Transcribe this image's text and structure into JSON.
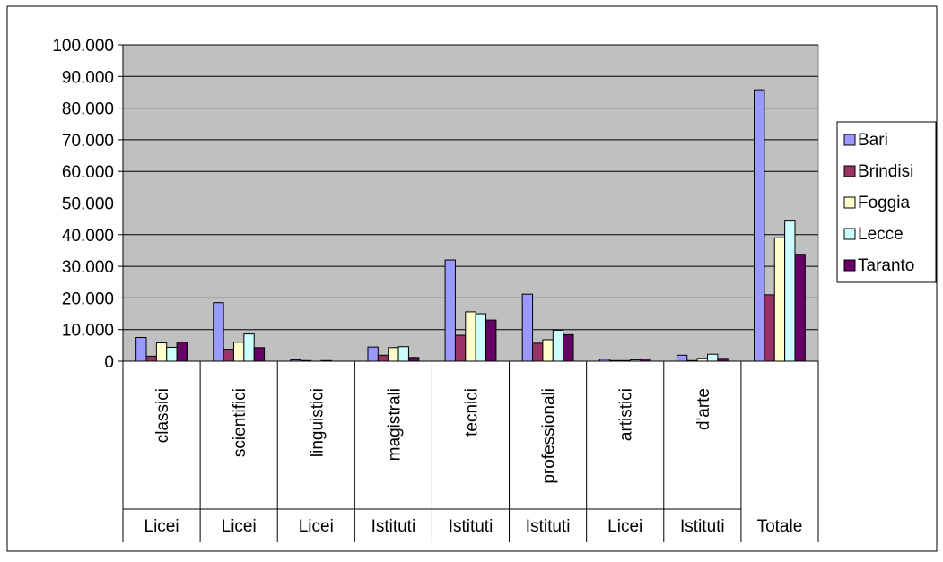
{
  "chart_data": {
    "type": "bar",
    "title": "",
    "xlabel": "",
    "ylabel": "",
    "ylim": [
      0,
      100000
    ],
    "yticks": [
      0,
      10000,
      20000,
      30000,
      40000,
      50000,
      60000,
      70000,
      80000,
      90000,
      100000
    ],
    "ytick_labels": [
      "0",
      "10.000",
      "20.000",
      "30.000",
      "40.000",
      "50.000",
      "60.000",
      "70.000",
      "80.000",
      "90.000",
      "100.000"
    ],
    "grid": true,
    "legend_position": "right",
    "categories": [
      "classici",
      "scientifici",
      "linguistici",
      "magistrali",
      "tecnici",
      "professionali",
      "artistici",
      "d'arte",
      ""
    ],
    "groups": [
      "Licei",
      "Licei",
      "Licei",
      "Istituti",
      "Istituti",
      "Istituti",
      "Licei",
      "Istituti",
      "Totale"
    ],
    "series": [
      {
        "name": "Bari",
        "color": "#9999ff",
        "values": [
          7500,
          18500,
          400,
          4500,
          32000,
          21200,
          600,
          1900,
          85800
        ]
      },
      {
        "name": "Brindisi",
        "color": "#993366",
        "values": [
          1600,
          3800,
          200,
          1900,
          8200,
          5700,
          200,
          200,
          21000
        ]
      },
      {
        "name": "Foggia",
        "color": "#ffffcc",
        "values": [
          5800,
          6000,
          0,
          4300,
          15600,
          6800,
          200,
          900,
          39000
        ]
      },
      {
        "name": "Lecce",
        "color": "#ccffff",
        "values": [
          4400,
          8600,
          200,
          4600,
          15000,
          9800,
          400,
          2200,
          44300
        ]
      },
      {
        "name": "Taranto",
        "color": "#660066",
        "values": [
          6000,
          4300,
          0,
          1200,
          13000,
          8400,
          700,
          900,
          33800
        ]
      }
    ]
  }
}
